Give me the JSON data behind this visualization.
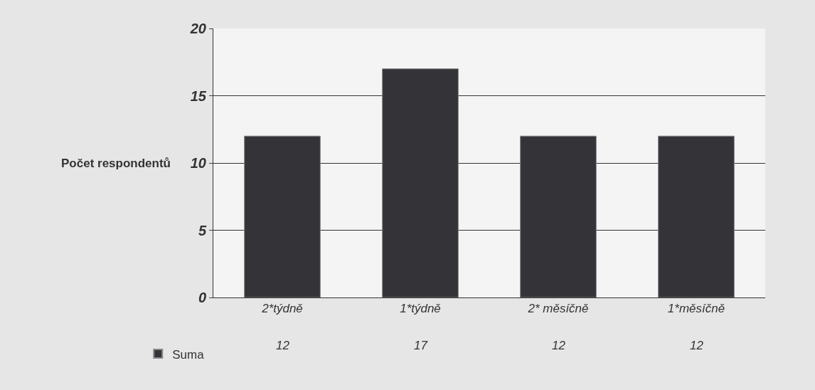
{
  "chart_data": {
    "type": "bar",
    "ylabel": "Počet respondentů",
    "categories": [
      "2*týdně",
      "1*týdně",
      "2* měsíčně",
      "1*měsíčně"
    ],
    "series": [
      {
        "name": "Suma",
        "color": "#333338",
        "values": [
          12,
          17,
          12,
          12
        ]
      }
    ],
    "ylim": [
      0,
      20
    ],
    "yticks": [
      0,
      5,
      10,
      15,
      20
    ],
    "grid": "y",
    "legend": "bottom left",
    "data_labels": true
  }
}
